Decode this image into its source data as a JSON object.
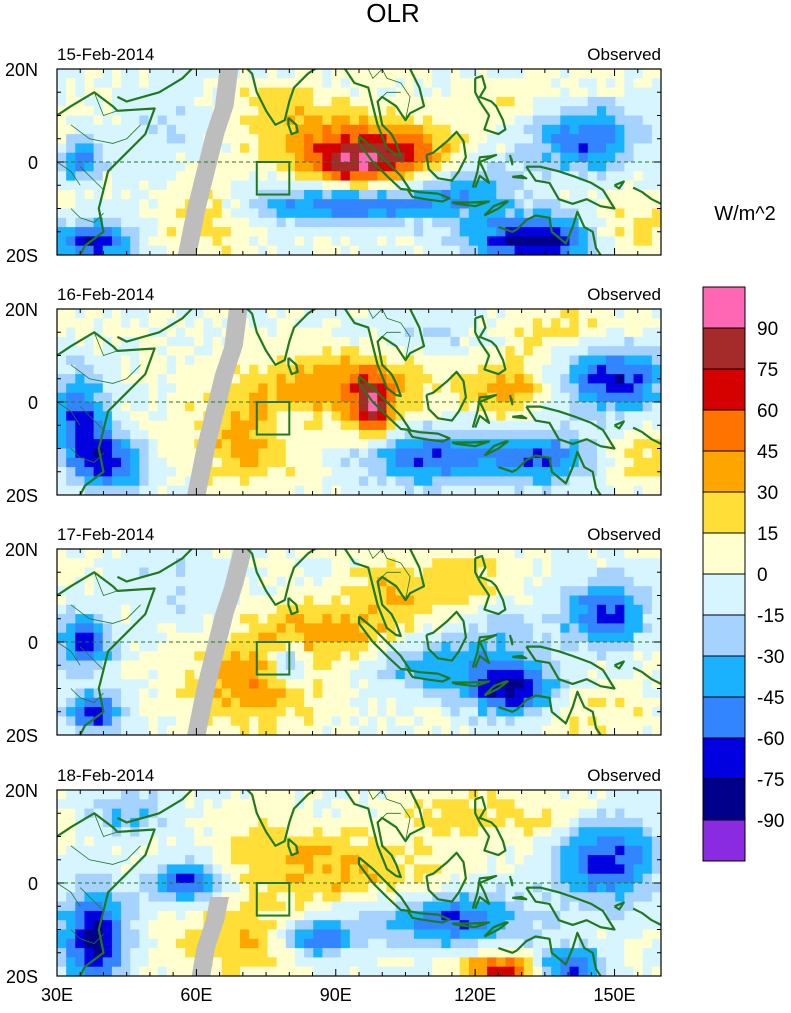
{
  "chart_data": {
    "type": "heatmap",
    "title": "OLR",
    "units_label": "W/m^2",
    "legend_position": "right",
    "x_axis": {
      "range": [
        30,
        160
      ],
      "ticks": [
        30,
        60,
        90,
        120,
        150
      ],
      "tick_labels": [
        "30E",
        "60E",
        "90E",
        "120E",
        "150E"
      ]
    },
    "y_axis": {
      "range": [
        -20,
        20
      ],
      "ticks": [
        20,
        0,
        -20
      ],
      "tick_labels": [
        "20N",
        "0",
        "20S"
      ]
    },
    "colorbar": {
      "levels": [
        90,
        75,
        60,
        45,
        30,
        15,
        0,
        -15,
        -30,
        -45,
        -60,
        -75,
        -90
      ],
      "level_labels": [
        "90",
        "75",
        "60",
        "45",
        "30",
        "15",
        "0",
        "-15",
        "-30",
        "-45",
        "-60",
        "-75",
        "-90"
      ],
      "colors": [
        "#ff66b3",
        "#a52a2a",
        "#d50000",
        "#ff7400",
        "#ffa500",
        "#ffde37",
        "#ffffd0",
        "#d6f5ff",
        "#a5d2ff",
        "#1ab2ff",
        "#3385ff",
        "#0000e0",
        "#00008b",
        "#8a2be2"
      ]
    },
    "missing_color": "#bdbdbd",
    "coast_color": "#1f7a1f",
    "panels": [
      {
        "date": "15-Feb-2014",
        "label": "Observed",
        "features": [
          {
            "lon": 95,
            "lat": 0,
            "sx": 8,
            "sy": 4,
            "amp": 75
          },
          {
            "lon": 90,
            "lat": 5,
            "sx": 14,
            "sy": 5,
            "amp": 30
          },
          {
            "lon": 108,
            "lat": 2,
            "sx": 6,
            "sy": 4,
            "amp": 28
          },
          {
            "lon": 152,
            "lat": -15,
            "sx": 7,
            "sy": 4,
            "amp": 30
          },
          {
            "lon": 92,
            "lat": -9,
            "sx": 14,
            "sy": 3,
            "amp": -60
          },
          {
            "lon": 133,
            "lat": -17,
            "sx": 10,
            "sy": 4,
            "amp": -85
          },
          {
            "lon": 143,
            "lat": 5,
            "sx": 8,
            "sy": 5,
            "amp": -60
          },
          {
            "lon": 38,
            "lat": -17,
            "sx": 6,
            "sy": 3,
            "amp": -70
          },
          {
            "lon": 35,
            "lat": 0,
            "sx": 3,
            "sy": 3,
            "amp": -55
          },
          {
            "lon": 118,
            "lat": -6,
            "sx": 8,
            "sy": 4,
            "amp": -35
          },
          {
            "lon": 62,
            "lat": -12,
            "sx": 6,
            "sy": 6,
            "amp": 25
          },
          {
            "lon": 75,
            "lat": 12,
            "sx": 10,
            "sy": 4,
            "amp": 15
          },
          {
            "lon": 130,
            "lat": 12,
            "sx": 8,
            "sy": 4,
            "amp": 15
          },
          {
            "lon": 55,
            "lat": 8,
            "sx": 8,
            "sy": 6,
            "amp": -15
          }
        ],
        "missing_strip": [
          [
            69,
            20
          ],
          [
            68,
            12
          ],
          [
            66,
            6
          ],
          [
            64,
            -2
          ],
          [
            62,
            -10
          ],
          [
            60,
            -20
          ]
        ]
      },
      {
        "date": "16-Feb-2014",
        "label": "Observed",
        "features": [
          {
            "lon": 98,
            "lat": -2,
            "sx": 3,
            "sy": 5,
            "amp": 70
          },
          {
            "lon": 92,
            "lat": 4,
            "sx": 14,
            "sy": 5,
            "amp": 40
          },
          {
            "lon": 72,
            "lat": -8,
            "sx": 10,
            "sy": 7,
            "amp": 35
          },
          {
            "lon": 127,
            "lat": 3,
            "sx": 6,
            "sy": 4,
            "amp": 40
          },
          {
            "lon": 155,
            "lat": -12,
            "sx": 5,
            "sy": 4,
            "amp": 25
          },
          {
            "lon": 35,
            "lat": -4,
            "sx": 4,
            "sy": 7,
            "amp": -70
          },
          {
            "lon": 42,
            "lat": -13,
            "sx": 5,
            "sy": 4,
            "amp": -65
          },
          {
            "lon": 110,
            "lat": -12,
            "sx": 12,
            "sy": 4,
            "amp": -60
          },
          {
            "lon": 150,
            "lat": 5,
            "sx": 8,
            "sy": 5,
            "amp": -70
          },
          {
            "lon": 135,
            "lat": -12,
            "sx": 8,
            "sy": 4,
            "amp": -50
          },
          {
            "lon": 80,
            "lat": -5,
            "sx": 3,
            "sy": 3,
            "amp": -30
          },
          {
            "lon": 110,
            "lat": 14,
            "sx": 8,
            "sy": 4,
            "amp": -15
          },
          {
            "lon": 140,
            "lat": 15,
            "sx": 10,
            "sy": 4,
            "amp": 20
          }
        ],
        "missing_strip": [
          [
            71,
            20
          ],
          [
            70,
            12
          ],
          [
            68,
            6
          ],
          [
            66,
            -2
          ],
          [
            64,
            -10
          ],
          [
            62,
            -20
          ]
        ]
      },
      {
        "date": "17-Feb-2014",
        "label": "Observed",
        "features": [
          {
            "lon": 72,
            "lat": -9,
            "sx": 10,
            "sy": 7,
            "amp": 40
          },
          {
            "lon": 90,
            "lat": 2,
            "sx": 12,
            "sy": 5,
            "amp": 35
          },
          {
            "lon": 115,
            "lat": 12,
            "sx": 8,
            "sy": 5,
            "amp": 25
          },
          {
            "lon": 100,
            "lat": 12,
            "sx": 6,
            "sy": 4,
            "amp": 20
          },
          {
            "lon": 36,
            "lat": 0,
            "sx": 4,
            "sy": 4,
            "amp": -70
          },
          {
            "lon": 38,
            "lat": -15,
            "sx": 4,
            "sy": 3,
            "amp": -70
          },
          {
            "lon": 128,
            "lat": -10,
            "sx": 7,
            "sy": 4,
            "amp": -80
          },
          {
            "lon": 148,
            "lat": 6,
            "sx": 6,
            "sy": 5,
            "amp": -65
          },
          {
            "lon": 110,
            "lat": -5,
            "sx": 10,
            "sy": 4,
            "amp": -40
          },
          {
            "lon": 80,
            "lat": -5,
            "sx": 3,
            "sy": 3,
            "amp": -55
          },
          {
            "lon": 125,
            "lat": 2,
            "sx": 8,
            "sy": 4,
            "amp": -25
          },
          {
            "lon": 145,
            "lat": -15,
            "sx": 8,
            "sy": 4,
            "amp": 20
          },
          {
            "lon": 55,
            "lat": 12,
            "sx": 8,
            "sy": 6,
            "amp": -15
          }
        ],
        "missing_strip": [
          [
            72,
            20
          ],
          [
            70,
            12
          ],
          [
            68,
            6
          ],
          [
            66,
            -2
          ],
          [
            64,
            -10
          ],
          [
            62,
            -20
          ]
        ]
      },
      {
        "date": "18-Feb-2014",
        "label": "Observed",
        "features": [
          {
            "lon": 38,
            "lat": -12,
            "sx": 5,
            "sy": 7,
            "amp": -85
          },
          {
            "lon": 58,
            "lat": 0,
            "sx": 5,
            "sy": 3,
            "amp": -70
          },
          {
            "lon": 86,
            "lat": -12,
            "sx": 5,
            "sy": 3,
            "amp": -65
          },
          {
            "lon": 115,
            "lat": -8,
            "sx": 12,
            "sy": 4,
            "amp": -60
          },
          {
            "lon": 148,
            "lat": 5,
            "sx": 8,
            "sy": 6,
            "amp": -70
          },
          {
            "lon": 140,
            "lat": -18,
            "sx": 5,
            "sy": 3,
            "amp": -65
          },
          {
            "lon": 126,
            "lat": -19,
            "sx": 6,
            "sy": 3,
            "amp": 65
          },
          {
            "lon": 90,
            "lat": 3,
            "sx": 14,
            "sy": 5,
            "amp": 35
          },
          {
            "lon": 70,
            "lat": -12,
            "sx": 10,
            "sy": 6,
            "amp": 30
          },
          {
            "lon": 135,
            "lat": 13,
            "sx": 8,
            "sy": 5,
            "amp": 20
          },
          {
            "lon": 115,
            "lat": 15,
            "sx": 8,
            "sy": 4,
            "amp": 20
          },
          {
            "lon": 75,
            "lat": 10,
            "sx": 8,
            "sy": 4,
            "amp": 15
          },
          {
            "lon": 45,
            "lat": 15,
            "sx": 6,
            "sy": 4,
            "amp": -30
          }
        ],
        "missing_strip": [
          [
            67,
            -3
          ],
          [
            66,
            -8
          ],
          [
            64,
            -14
          ],
          [
            63,
            -20
          ]
        ]
      }
    ]
  }
}
